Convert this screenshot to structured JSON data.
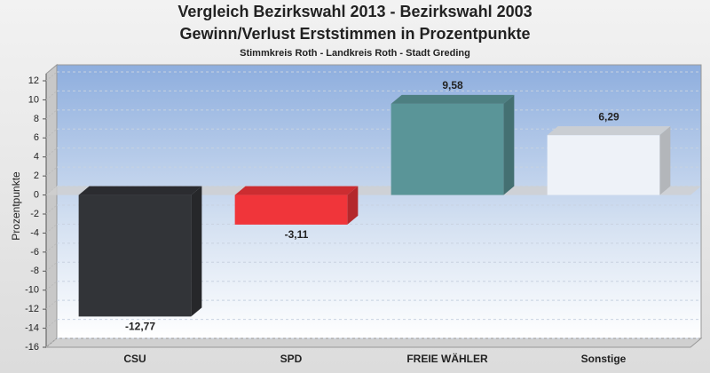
{
  "chart_data": {
    "type": "bar",
    "title": [
      "Vergleich Bezirkswahl 2013 - Bezirkswahl 2003",
      "Gewinn/Verlust Erststimmen in Prozentpunkte"
    ],
    "subtitle": "Stimmkreis Roth - Landkreis Roth - Stadt Greding",
    "y_label": "Prozentpunkte",
    "categories": [
      "CSU",
      "SPD",
      "FREIE WÄHLER",
      "Sonstige"
    ],
    "values": [
      -12.77,
      -3.11,
      9.58,
      6.29
    ],
    "value_labels": [
      "-12,77",
      "-3,11",
      "9,58",
      "6,29"
    ],
    "colors": [
      "#323438",
      "#f0353a",
      "#5a9598",
      "#eef2f8"
    ],
    "ylim": [
      -16,
      12
    ],
    "yticks": [
      -16,
      -14,
      -12,
      -10,
      -8,
      -6,
      -4,
      -2,
      0,
      2,
      4,
      6,
      8,
      10,
      12
    ],
    "grid": true
  }
}
